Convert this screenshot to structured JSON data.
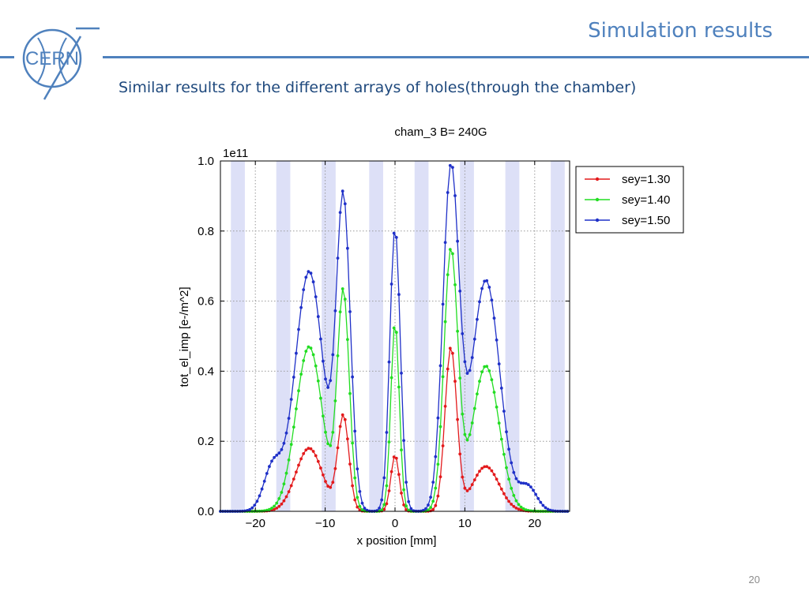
{
  "slide": {
    "title": "Simulation results",
    "subtitle": "Similar results for the different arrays of holes(through the chamber)",
    "page_number": "20",
    "logo_text": "CERN"
  },
  "colors": {
    "accent": "#4f81bd",
    "subtitle": "#1f497d",
    "band": "#dde0f7"
  },
  "chart_data": {
    "type": "line",
    "title": "cham_3 B= 240G",
    "xlabel": "x position [mm]",
    "ylabel": "tot_el_imp [e-/m^2]",
    "y_multiplier_label": "1e11",
    "xlim": [
      -25,
      25
    ],
    "ylim": [
      0,
      1.0
    ],
    "xticks": [
      -20,
      -10,
      0,
      10,
      20
    ],
    "xtick_labels": [
      "−20",
      "−10",
      "0",
      "10",
      "20"
    ],
    "yticks": [
      0,
      0.2,
      0.4,
      0.6,
      0.8,
      1.0
    ],
    "ytick_labels": [
      "0.0",
      "0.2",
      "0.4",
      "0.6",
      "0.8",
      "1.0"
    ],
    "grid": true,
    "legend_position": "outside-right-top",
    "shaded_bands": [
      [
        -23.5,
        -21.5
      ],
      [
        -17,
        -15
      ],
      [
        -10.5,
        -8.5
      ],
      [
        -3.7,
        -1.7
      ],
      [
        2.8,
        4.8
      ],
      [
        9.3,
        11.3
      ],
      [
        15.8,
        17.8
      ],
      [
        22.3,
        24.3
      ]
    ],
    "series": [
      {
        "name": "sey=1.30",
        "color": "#e31a1c",
        "peaks": [
          {
            "x": -12.3,
            "y": 0.18,
            "w": 1.9
          },
          {
            "x": -7.4,
            "y": 0.27,
            "w": 0.8
          },
          {
            "x": 0.0,
            "y": 0.16,
            "w": 0.6
          },
          {
            "x": 8.0,
            "y": 0.465,
            "w": 0.85
          },
          {
            "x": 13.0,
            "y": 0.128,
            "w": 1.9
          }
        ]
      },
      {
        "name": "sey=1.40",
        "color": "#22dd22",
        "peaks": [
          {
            "x": -12.3,
            "y": 0.47,
            "w": 1.9
          },
          {
            "x": -7.4,
            "y": 0.62,
            "w": 0.85
          },
          {
            "x": 0.0,
            "y": 0.54,
            "w": 0.6
          },
          {
            "x": 8.0,
            "y": 0.74,
            "w": 1.0
          },
          {
            "x": 13.0,
            "y": 0.415,
            "w": 1.9
          }
        ]
      },
      {
        "name": "sey=1.50",
        "color": "#1f30c8",
        "peaks": [
          {
            "x": -17.5,
            "y": 0.125,
            "w": 1.3
          },
          {
            "x": -12.3,
            "y": 0.685,
            "w": 2.0
          },
          {
            "x": -7.4,
            "y": 0.88,
            "w": 1.0
          },
          {
            "x": 0.0,
            "y": 0.81,
            "w": 0.75
          },
          {
            "x": 8.0,
            "y": 0.965,
            "w": 1.15
          },
          {
            "x": 13.0,
            "y": 0.66,
            "w": 2.0
          },
          {
            "x": 19.0,
            "y": 0.07,
            "w": 1.3
          }
        ]
      }
    ]
  }
}
